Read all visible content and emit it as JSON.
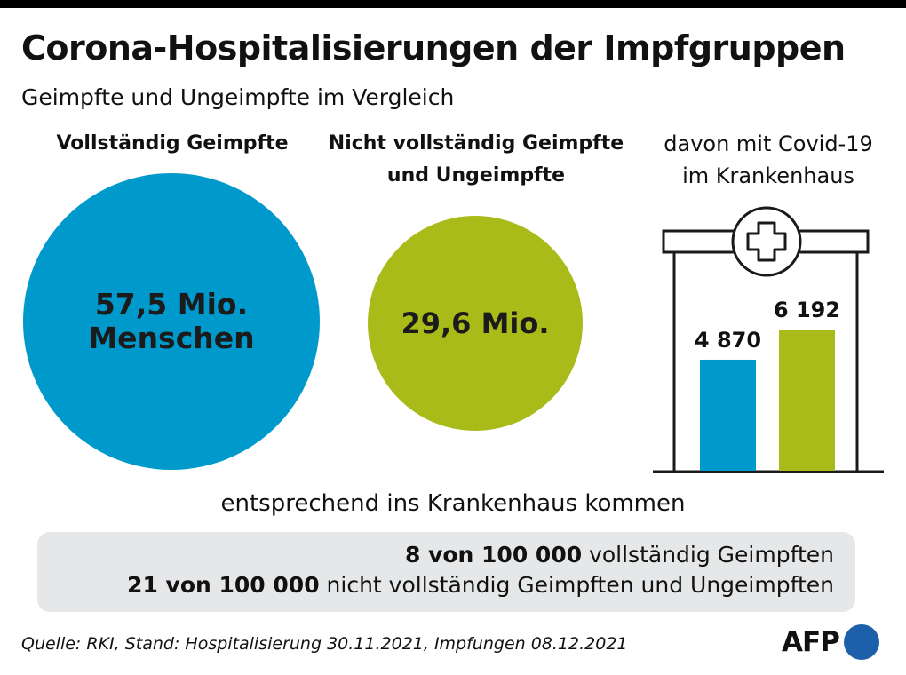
{
  "header": {
    "title": "Corona-Hospitalisierungen der Impfgruppen",
    "subtitle": "Geimpfte und Ungeimpfte im Vergleich"
  },
  "columns": {
    "vaccinated": {
      "heading": "Vollständig Geimpfte",
      "value_text": "57,5 Mio.\nMenschen"
    },
    "unvaccinated": {
      "heading": "Nicht vollständig Geimpfte\nund Ungeimpfte",
      "value_text": "29,6 Mio."
    },
    "hospital": {
      "heading": "davon mit Covid-19\nim Krankenhaus"
    }
  },
  "chart_data": {
    "type": "bar",
    "title": "davon mit Covid-19 im Krankenhaus",
    "categories": [
      "Vollständig Geimpfte",
      "Nicht vollständig Geimpfte und Ungeimpfte"
    ],
    "values": [
      4870,
      6192
    ],
    "value_labels": [
      "4 870",
      "6 192"
    ],
    "colors": [
      "#0099cc",
      "#a9bb19"
    ],
    "population_millions": [
      57.5,
      29.6
    ]
  },
  "rates": {
    "intro": "entsprechend ins Krankenhaus kommen",
    "lines": [
      {
        "bold": "8 von 100 000",
        "rest": " vollständig Geimpften"
      },
      {
        "bold": "21 von 100 000",
        "rest": " nicht vollständig Geimpften und Ungeimpften"
      }
    ]
  },
  "footer": {
    "source": "Quelle: RKI, Stand: Hospitalisierung 30.11.2021, Impfungen 08.12.2021",
    "logo": "AFP"
  },
  "colors": {
    "blue": "#0099cc",
    "green": "#a9bb19",
    "box": "#e5e7e8",
    "logo_dot": "#1c5fab"
  }
}
